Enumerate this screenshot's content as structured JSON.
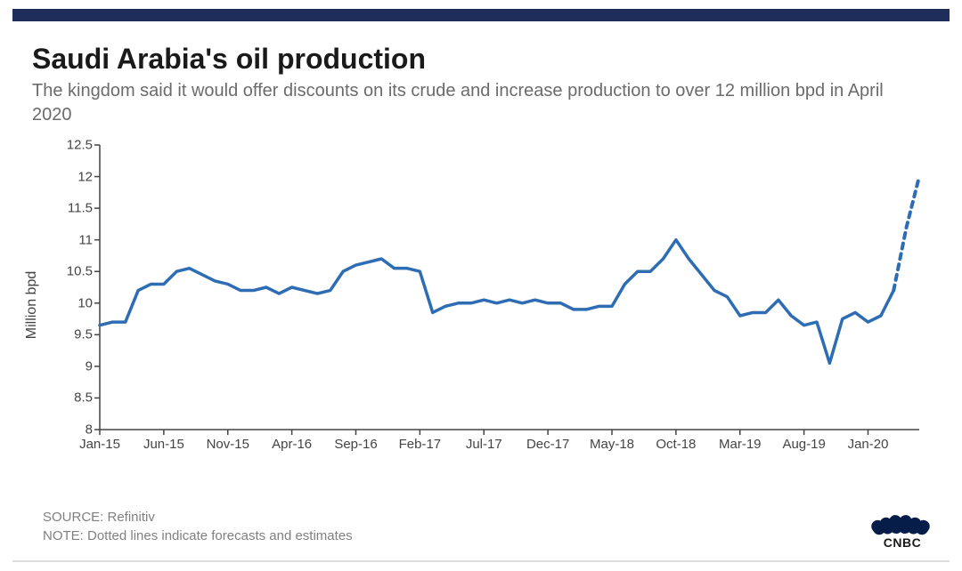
{
  "title": "Saudi Arabia's oil production",
  "subtitle": "The kingdom said it would offer discounts on its crude and increase production to over 12 million bpd in April 2020",
  "ylabel": "Million bpd",
  "source_line": "SOURCE: Refinitiv",
  "note_line": "NOTE: Dotted lines indicate forecasts and estimates",
  "logo_text": "CNBC",
  "chart": {
    "type": "line",
    "ylim": [
      8,
      12.5
    ],
    "ytick_step": 0.5,
    "x_labels": [
      "Jan-15",
      "Jun-15",
      "Nov-15",
      "Apr-16",
      "Sep-16",
      "Feb-17",
      "Jul-17",
      "Dec-17",
      "May-18",
      "Oct-18",
      "Mar-19",
      "Aug-19",
      "Jan-20"
    ],
    "x_domain_months": 64,
    "series_solid": {
      "points": [
        [
          0,
          9.65
        ],
        [
          1,
          9.7
        ],
        [
          2,
          9.7
        ],
        [
          3,
          10.2
        ],
        [
          4,
          10.3
        ],
        [
          5,
          10.3
        ],
        [
          6,
          10.5
        ],
        [
          7,
          10.55
        ],
        [
          8,
          10.45
        ],
        [
          9,
          10.35
        ],
        [
          10,
          10.3
        ],
        [
          11,
          10.2
        ],
        [
          12,
          10.2
        ],
        [
          13,
          10.25
        ],
        [
          14,
          10.15
        ],
        [
          15,
          10.25
        ],
        [
          16,
          10.2
        ],
        [
          17,
          10.15
        ],
        [
          18,
          10.2
        ],
        [
          19,
          10.5
        ],
        [
          20,
          10.6
        ],
        [
          21,
          10.65
        ],
        [
          22,
          10.7
        ],
        [
          23,
          10.55
        ],
        [
          24,
          10.55
        ],
        [
          25,
          10.5
        ],
        [
          26,
          9.85
        ],
        [
          27,
          9.95
        ],
        [
          28,
          10.0
        ],
        [
          29,
          10.0
        ],
        [
          30,
          10.05
        ],
        [
          31,
          10.0
        ],
        [
          32,
          10.05
        ],
        [
          33,
          10.0
        ],
        [
          34,
          10.05
        ],
        [
          35,
          10.0
        ],
        [
          36,
          10.0
        ],
        [
          37,
          9.9
        ],
        [
          38,
          9.9
        ],
        [
          39,
          9.95
        ],
        [
          40,
          9.95
        ],
        [
          41,
          10.3
        ],
        [
          42,
          10.5
        ],
        [
          43,
          10.5
        ],
        [
          44,
          10.7
        ],
        [
          45,
          11.0
        ],
        [
          46,
          10.7
        ],
        [
          47,
          10.45
        ],
        [
          48,
          10.2
        ],
        [
          49,
          10.1
        ],
        [
          50,
          9.8
        ],
        [
          51,
          9.85
        ],
        [
          52,
          9.85
        ],
        [
          53,
          10.05
        ],
        [
          54,
          9.8
        ],
        [
          55,
          9.65
        ],
        [
          56,
          9.7
        ],
        [
          57,
          9.05
        ],
        [
          58,
          9.75
        ],
        [
          59,
          9.85
        ],
        [
          60,
          9.7
        ],
        [
          61,
          9.8
        ],
        [
          62,
          10.2
        ]
      ],
      "color": "#2e6db4",
      "width": 3.5,
      "dash": "none"
    },
    "series_forecast": {
      "points": [
        [
          62,
          10.2
        ],
        [
          63,
          11.2
        ],
        [
          64,
          12.0
        ]
      ],
      "color": "#2e6db4",
      "width": 4,
      "dash": "6,6"
    },
    "axis_color": "#444444",
    "background": "#ffffff"
  },
  "logo_colors": [
    "#071d49",
    "#071d49",
    "#071d49",
    "#071d49",
    "#071d49",
    "#071d49"
  ]
}
